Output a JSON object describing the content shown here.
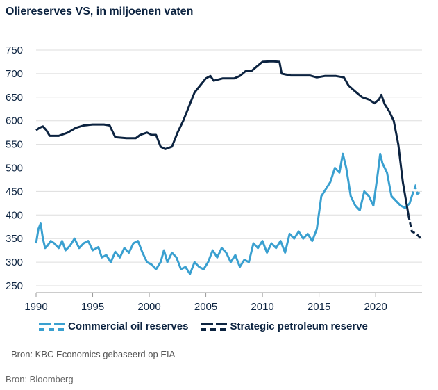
{
  "title": "Oliereserves VS, in miljoenen vaten",
  "source_line_1": "Bron: KBC Economics gebaseerd op EIA",
  "source_line_2": "Bron: Bloomberg",
  "colors": {
    "commercial": "#3aa0d0",
    "strategic": "#0c2340",
    "grid": "#dddddd",
    "text": "#0c2340"
  },
  "legend": {
    "commercial_label": "Commercial oil reserves",
    "strategic_label": "Strategic petroleum reserve"
  },
  "chart_data": {
    "type": "line",
    "title": "Oliereserves VS, in miljoenen vaten",
    "xlabel": "",
    "ylabel": "",
    "xlim": [
      1990,
      2024.1
    ],
    "ylim": [
      250,
      750
    ],
    "xticks": [
      1990,
      1995,
      2000,
      2005,
      2010,
      2015,
      2020
    ],
    "yticks": [
      250,
      300,
      350,
      400,
      450,
      500,
      550,
      600,
      650,
      700,
      750
    ],
    "grid": true,
    "legend_position": "bottom",
    "series": [
      {
        "name": "Commercial oil reserves",
        "forecast_from": 2023.2,
        "points": [
          [
            1990.0,
            340
          ],
          [
            1990.2,
            370
          ],
          [
            1990.4,
            382
          ],
          [
            1990.6,
            350
          ],
          [
            1990.8,
            330
          ],
          [
            1991.0,
            335
          ],
          [
            1991.3,
            345
          ],
          [
            1991.6,
            340
          ],
          [
            1992.0,
            330
          ],
          [
            1992.3,
            345
          ],
          [
            1992.6,
            325
          ],
          [
            1993.0,
            335
          ],
          [
            1993.4,
            350
          ],
          [
            1993.8,
            330
          ],
          [
            1994.2,
            340
          ],
          [
            1994.6,
            345
          ],
          [
            1995.0,
            325
          ],
          [
            1995.5,
            332
          ],
          [
            1995.8,
            310
          ],
          [
            1996.2,
            315
          ],
          [
            1996.6,
            300
          ],
          [
            1997.0,
            322
          ],
          [
            1997.4,
            310
          ],
          [
            1997.8,
            330
          ],
          [
            1998.2,
            320
          ],
          [
            1998.6,
            340
          ],
          [
            1999.0,
            345
          ],
          [
            1999.4,
            320
          ],
          [
            1999.8,
            300
          ],
          [
            2000.2,
            295
          ],
          [
            2000.6,
            285
          ],
          [
            2001.0,
            300
          ],
          [
            2001.3,
            325
          ],
          [
            2001.6,
            300
          ],
          [
            2002.0,
            320
          ],
          [
            2002.4,
            310
          ],
          [
            2002.8,
            285
          ],
          [
            2003.2,
            290
          ],
          [
            2003.6,
            275
          ],
          [
            2004.0,
            300
          ],
          [
            2004.4,
            290
          ],
          [
            2004.8,
            285
          ],
          [
            2005.2,
            300
          ],
          [
            2005.6,
            325
          ],
          [
            2006.0,
            310
          ],
          [
            2006.4,
            330
          ],
          [
            2006.8,
            320
          ],
          [
            2007.2,
            300
          ],
          [
            2007.6,
            315
          ],
          [
            2008.0,
            290
          ],
          [
            2008.4,
            305
          ],
          [
            2008.8,
            300
          ],
          [
            2009.2,
            340
          ],
          [
            2009.6,
            330
          ],
          [
            2010.0,
            345
          ],
          [
            2010.4,
            320
          ],
          [
            2010.8,
            340
          ],
          [
            2011.2,
            330
          ],
          [
            2011.6,
            345
          ],
          [
            2012.0,
            320
          ],
          [
            2012.4,
            360
          ],
          [
            2012.8,
            350
          ],
          [
            2013.2,
            365
          ],
          [
            2013.6,
            350
          ],
          [
            2014.0,
            360
          ],
          [
            2014.4,
            345
          ],
          [
            2014.8,
            370
          ],
          [
            2015.2,
            440
          ],
          [
            2015.6,
            455
          ],
          [
            2016.0,
            470
          ],
          [
            2016.4,
            500
          ],
          [
            2016.8,
            490
          ],
          [
            2017.1,
            530
          ],
          [
            2017.4,
            500
          ],
          [
            2017.8,
            440
          ],
          [
            2018.2,
            420
          ],
          [
            2018.6,
            410
          ],
          [
            2019.0,
            450
          ],
          [
            2019.4,
            440
          ],
          [
            2019.8,
            420
          ],
          [
            2020.2,
            490
          ],
          [
            2020.4,
            530
          ],
          [
            2020.6,
            510
          ],
          [
            2021.0,
            490
          ],
          [
            2021.4,
            440
          ],
          [
            2021.8,
            430
          ],
          [
            2022.2,
            420
          ],
          [
            2022.6,
            415
          ],
          [
            2023.0,
            425
          ],
          [
            2023.2,
            440
          ],
          [
            2023.5,
            460
          ],
          [
            2023.7,
            445
          ],
          [
            2024.0,
            450
          ]
        ]
      },
      {
        "name": "Strategic petroleum reserve",
        "forecast_from": 2022.9,
        "points": [
          [
            1990.0,
            580
          ],
          [
            1990.3,
            585
          ],
          [
            1990.6,
            588
          ],
          [
            1990.9,
            580
          ],
          [
            1991.2,
            568
          ],
          [
            1992.0,
            568
          ],
          [
            1992.8,
            575
          ],
          [
            1993.5,
            585
          ],
          [
            1994.2,
            590
          ],
          [
            1995.0,
            592
          ],
          [
            1996.0,
            592
          ],
          [
            1996.5,
            590
          ],
          [
            1997.0,
            565
          ],
          [
            1998.0,
            563
          ],
          [
            1998.8,
            563
          ],
          [
            1999.2,
            570
          ],
          [
            1999.8,
            575
          ],
          [
            2000.2,
            570
          ],
          [
            2000.6,
            570
          ],
          [
            2001.0,
            545
          ],
          [
            2001.4,
            540
          ],
          [
            2002.0,
            545
          ],
          [
            2002.5,
            575
          ],
          [
            2003.0,
            600
          ],
          [
            2003.5,
            630
          ],
          [
            2004.0,
            660
          ],
          [
            2004.5,
            675
          ],
          [
            2005.0,
            690
          ],
          [
            2005.4,
            695
          ],
          [
            2005.7,
            685
          ],
          [
            2006.5,
            690
          ],
          [
            2007.5,
            690
          ],
          [
            2008.0,
            695
          ],
          [
            2008.5,
            705
          ],
          [
            2009.0,
            705
          ],
          [
            2009.5,
            715
          ],
          [
            2010.0,
            725
          ],
          [
            2010.6,
            726
          ],
          [
            2011.0,
            726
          ],
          [
            2011.5,
            725
          ],
          [
            2011.7,
            700
          ],
          [
            2012.5,
            696
          ],
          [
            2013.5,
            696
          ],
          [
            2014.2,
            696
          ],
          [
            2014.8,
            692
          ],
          [
            2015.5,
            695
          ],
          [
            2016.5,
            695
          ],
          [
            2017.2,
            692
          ],
          [
            2017.6,
            675
          ],
          [
            2018.2,
            662
          ],
          [
            2018.8,
            650
          ],
          [
            2019.4,
            645
          ],
          [
            2019.9,
            637
          ],
          [
            2020.3,
            645
          ],
          [
            2020.5,
            655
          ],
          [
            2020.8,
            635
          ],
          [
            2021.2,
            620
          ],
          [
            2021.6,
            600
          ],
          [
            2022.0,
            550
          ],
          [
            2022.4,
            470
          ],
          [
            2022.9,
            400
          ],
          [
            2023.2,
            365
          ],
          [
            2023.6,
            360
          ],
          [
            2024.0,
            350
          ]
        ]
      }
    ]
  }
}
